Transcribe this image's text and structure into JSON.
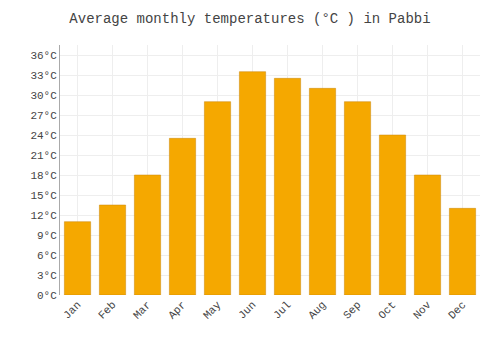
{
  "chart_data": {
    "type": "bar",
    "title": "Average monthly temperatures (°C ) in Pabbi",
    "categories": [
      "Jan",
      "Feb",
      "Mar",
      "Apr",
      "May",
      "Jun",
      "Jul",
      "Aug",
      "Sep",
      "Oct",
      "Nov",
      "Dec"
    ],
    "values": [
      11,
      13.5,
      18,
      23.5,
      29,
      33.5,
      32.5,
      31,
      29,
      24,
      18,
      13
    ],
    "color": "#F5A800",
    "ylim": [
      0,
      37.5
    ],
    "yticks": [
      {
        "value": 0,
        "label": "0°C"
      },
      {
        "value": 3,
        "label": "3°C"
      },
      {
        "value": 6,
        "label": "6°C"
      },
      {
        "value": 9,
        "label": "9°C"
      },
      {
        "value": 12,
        "label": "12°C"
      },
      {
        "value": 15,
        "label": "15°C"
      },
      {
        "value": 18,
        "label": "18°C"
      },
      {
        "value": 21,
        "label": "21°C"
      },
      {
        "value": 24,
        "label": "24°C"
      },
      {
        "value": 27,
        "label": "27°C"
      },
      {
        "value": 30,
        "label": "30°C"
      },
      {
        "value": 33,
        "label": "33°C"
      },
      {
        "value": 36,
        "label": "36°C"
      }
    ],
    "grid": true
  }
}
